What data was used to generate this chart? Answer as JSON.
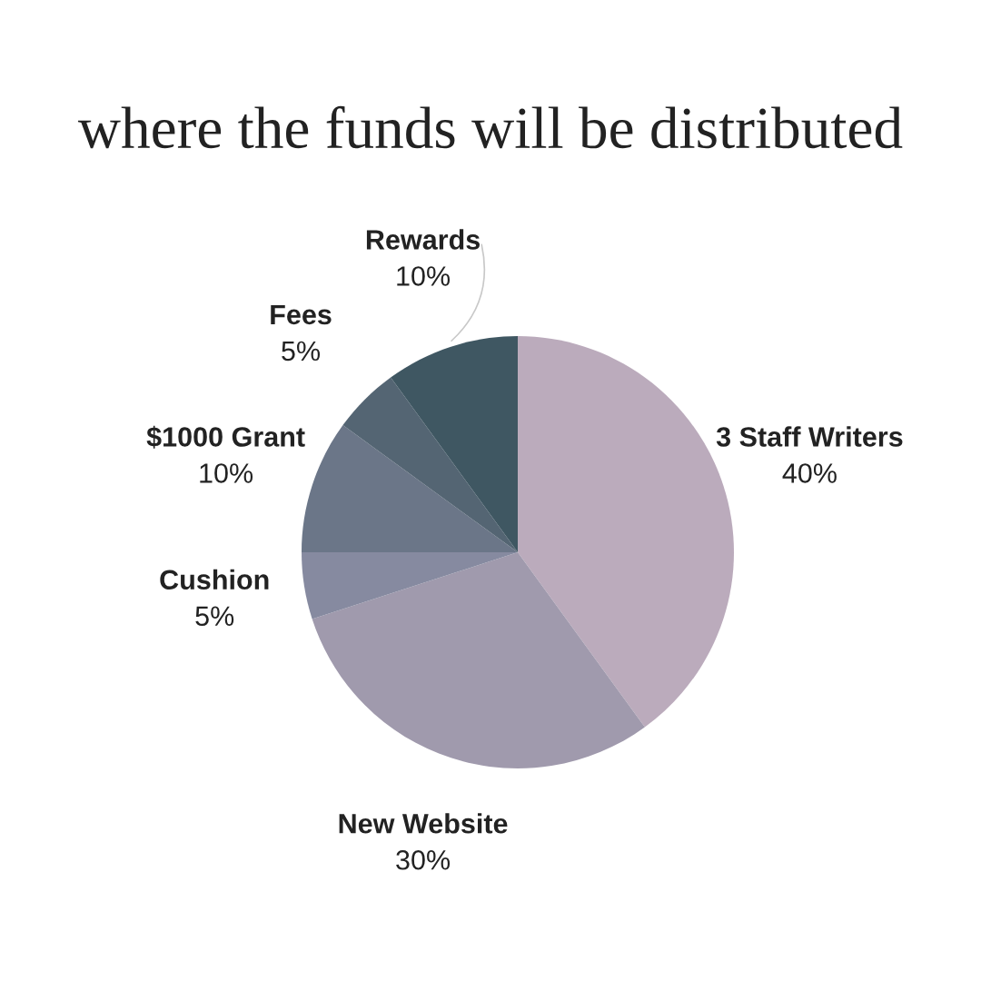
{
  "chart_data": {
    "type": "pie",
    "title": "where the funds will be distributed",
    "categories": [
      "3 Staff Writers",
      "New Website",
      "Cushion",
      "$1000 Grant",
      "Fees",
      "Rewards"
    ],
    "values": [
      40,
      30,
      5,
      10,
      5,
      10
    ],
    "colors": [
      "#bbabbc",
      "#a09aad",
      "#868aa0",
      "#6b7688",
      "#546573",
      "#3f5762"
    ],
    "value_labels": [
      "40%",
      "30%",
      "5%",
      "10%",
      "5%",
      "10%"
    ],
    "legend": false
  }
}
